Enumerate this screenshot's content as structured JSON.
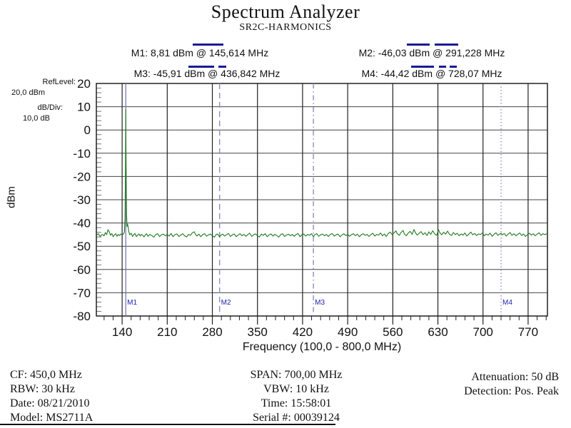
{
  "title": "Spectrum Analyzer",
  "subtitle": "SR2C-HARMONICS",
  "markers": [
    {
      "id": "M1",
      "label": "M1: 8,81 dBm @ 145,614 MHz",
      "freq_mhz": 145.614,
      "level_dbm": 8.81,
      "line_style": "solid"
    },
    {
      "id": "M2",
      "label": "M2: -46,03 dBm @ 291,228 MHz",
      "freq_mhz": 291.228,
      "level_dbm": -46.03,
      "line_style": "dashed"
    },
    {
      "id": "M3",
      "label": "M3: -45,91 dBm @ 436,842 MHz",
      "freq_mhz": 436.842,
      "level_dbm": -45.91,
      "line_style": "dashdot"
    },
    {
      "id": "M4",
      "label": "M4: -44,42 dBm @ 728,07 MHz",
      "freq_mhz": 728.07,
      "level_dbm": -44.42,
      "line_style": "dotted"
    }
  ],
  "left_panel": {
    "ref_level_label": "RefLevel:",
    "ref_level_value": "20,0  dBm",
    "db_div_label": "dB/Div:",
    "db_div_value": "10,0 dB"
  },
  "chart_data": {
    "type": "line",
    "title": "SR2C-HARMONICS",
    "xlabel": "Frequency (100,0 - 800,0 MHz)",
    "ylabel": "dBm",
    "xlim": [
      100,
      800
    ],
    "ylim": [
      -80,
      20
    ],
    "x_ticks": [
      140,
      210,
      280,
      350,
      420,
      490,
      560,
      630,
      700,
      770
    ],
    "y_ticks": [
      20,
      10,
      0,
      -10,
      -20,
      -30,
      -40,
      -50,
      -60,
      -70,
      -80
    ],
    "x_minor_step_mhz": 14,
    "y_minor_step_db": 2,
    "grid": true,
    "series": [
      {
        "name": "trace",
        "color": "#217a21",
        "points": [
          [
            100,
            -45.4
          ],
          [
            103,
            -44.6
          ],
          [
            106,
            -45.8
          ],
          [
            109,
            -44.9
          ],
          [
            112,
            -45.5
          ],
          [
            114,
            -44.1
          ],
          [
            116,
            -45.0
          ],
          [
            118,
            -42.9
          ],
          [
            120,
            -43.8
          ],
          [
            122,
            -45.3
          ],
          [
            124,
            -44.5
          ],
          [
            126,
            -45.9
          ],
          [
            128,
            -45.1
          ],
          [
            130,
            -44.6
          ],
          [
            132,
            -45.7
          ],
          [
            134,
            -44.9
          ],
          [
            136,
            -45.4
          ],
          [
            138,
            -44.7
          ],
          [
            140,
            -45.2
          ],
          [
            142,
            -44.8
          ],
          [
            143.5,
            -43.9
          ],
          [
            144.5,
            -38.0
          ],
          [
            145.2,
            -15.0
          ],
          [
            145.614,
            8.81
          ],
          [
            146.1,
            -12.0
          ],
          [
            146.8,
            -36.0
          ],
          [
            147.6,
            -41.5
          ],
          [
            148.5,
            -40.5
          ],
          [
            149.5,
            -42.0
          ],
          [
            150.5,
            -44.0
          ],
          [
            152,
            -45.1
          ],
          [
            154,
            -44.4
          ],
          [
            156,
            -45.8
          ],
          [
            158,
            -45.0
          ],
          [
            160,
            -44.5
          ],
          [
            162,
            -45.9
          ],
          [
            164,
            -45.2
          ],
          [
            166,
            -44.7
          ],
          [
            168,
            -45.6
          ],
          [
            170,
            -44.9
          ],
          [
            172,
            -45.3
          ],
          [
            174,
            -46.0
          ],
          [
            176,
            -45.1
          ],
          [
            178,
            -44.6
          ],
          [
            180,
            -45.7
          ],
          [
            183,
            -44.9
          ],
          [
            186,
            -45.4
          ],
          [
            189,
            -46.1
          ],
          [
            192,
            -45.0
          ],
          [
            195,
            -44.6
          ],
          [
            198,
            -45.8
          ],
          [
            201,
            -45.1
          ],
          [
            204,
            -44.8
          ],
          [
            207,
            -45.5
          ],
          [
            210,
            -44.9
          ],
          [
            213,
            -45.6
          ],
          [
            216,
            -44.5
          ],
          [
            219,
            -45.9
          ],
          [
            222,
            -45.0
          ],
          [
            225,
            -44.7
          ],
          [
            228,
            -45.8
          ],
          [
            231,
            -45.2
          ],
          [
            234,
            -44.6
          ],
          [
            237,
            -45.5
          ],
          [
            240,
            -46.0
          ],
          [
            243,
            -44.9
          ],
          [
            246,
            -45.3
          ],
          [
            249,
            -44.2
          ],
          [
            252,
            -43.8
          ],
          [
            254,
            -44.9
          ],
          [
            256,
            -45.6
          ],
          [
            259,
            -44.8
          ],
          [
            262,
            -45.9
          ],
          [
            265,
            -45.0
          ],
          [
            268,
            -44.6
          ],
          [
            271,
            -45.7
          ],
          [
            274,
            -45.1
          ],
          [
            277,
            -44.8
          ],
          [
            280,
            -45.5
          ],
          [
            283,
            -46.1
          ],
          [
            286,
            -45.0
          ],
          [
            288,
            -44.7
          ],
          [
            290,
            -45.4
          ],
          [
            291.228,
            -46.03
          ],
          [
            293,
            -45.2
          ],
          [
            296,
            -44.8
          ],
          [
            299,
            -45.6
          ],
          [
            302,
            -45.0
          ],
          [
            305,
            -44.5
          ],
          [
            308,
            -45.8
          ],
          [
            311,
            -45.1
          ],
          [
            314,
            -44.7
          ],
          [
            317,
            -45.9
          ],
          [
            320,
            -45.2
          ],
          [
            323,
            -44.6
          ],
          [
            326,
            -45.5
          ],
          [
            329,
            -44.9
          ],
          [
            332,
            -45.7
          ],
          [
            335,
            -45.0
          ],
          [
            338,
            -44.4
          ],
          [
            341,
            -45.8
          ],
          [
            344,
            -45.1
          ],
          [
            347,
            -44.7
          ],
          [
            350,
            -45.5
          ],
          [
            353,
            -46.0
          ],
          [
            356,
            -44.8
          ],
          [
            359,
            -45.3
          ],
          [
            362,
            -44.6
          ],
          [
            365,
            -45.9
          ],
          [
            368,
            -45.1
          ],
          [
            371,
            -44.7
          ],
          [
            374,
            -45.6
          ],
          [
            377,
            -44.9
          ],
          [
            380,
            -45.4
          ],
          [
            383,
            -46.1
          ],
          [
            386,
            -45.0
          ],
          [
            389,
            -44.6
          ],
          [
            392,
            -45.8
          ],
          [
            395,
            -45.2
          ],
          [
            398,
            -44.8
          ],
          [
            401,
            -45.5
          ],
          [
            404,
            -44.9
          ],
          [
            407,
            -45.7
          ],
          [
            410,
            -45.0
          ],
          [
            413,
            -44.5
          ],
          [
            416,
            -45.9
          ],
          [
            419,
            -45.1
          ],
          [
            422,
            -44.8
          ],
          [
            425,
            -45.6
          ],
          [
            428,
            -44.9
          ],
          [
            431,
            -45.3
          ],
          [
            434,
            -44.6
          ],
          [
            436.842,
            -45.91
          ],
          [
            439,
            -45.0
          ],
          [
            442,
            -44.6
          ],
          [
            445,
            -45.7
          ],
          [
            448,
            -45.1
          ],
          [
            451,
            -44.8
          ],
          [
            454,
            -45.5
          ],
          [
            457,
            -44.9
          ],
          [
            460,
            -45.8
          ],
          [
            463,
            -45.0
          ],
          [
            466,
            -44.5
          ],
          [
            469,
            -45.6
          ],
          [
            472,
            -45.1
          ],
          [
            475,
            -44.8
          ],
          [
            478,
            -45.9
          ],
          [
            481,
            -45.2
          ],
          [
            484,
            -44.6
          ],
          [
            487,
            -45.4
          ],
          [
            490,
            -44.9
          ],
          [
            493,
            -45.7
          ],
          [
            496,
            -45.0
          ],
          [
            499,
            -44.6
          ],
          [
            502,
            -45.5
          ],
          [
            505,
            -44.8
          ],
          [
            508,
            -45.9
          ],
          [
            511,
            -45.1
          ],
          [
            514,
            -44.6
          ],
          [
            517,
            -45.3
          ],
          [
            520,
            -44.9
          ],
          [
            523,
            -45.8
          ],
          [
            526,
            -45.0
          ],
          [
            529,
            -44.4
          ],
          [
            532,
            -45.6
          ],
          [
            535,
            -44.9
          ],
          [
            538,
            -45.2
          ],
          [
            541,
            -44.3
          ],
          [
            544,
            -45.5
          ],
          [
            547,
            -44.7
          ],
          [
            550,
            -45.8
          ],
          [
            553,
            -44.5
          ],
          [
            556,
            -43.9
          ],
          [
            559,
            -45.0
          ],
          [
            562,
            -44.2
          ],
          [
            565,
            -43.4
          ],
          [
            567,
            -44.6
          ],
          [
            570,
            -45.3
          ],
          [
            573,
            -44.0
          ],
          [
            576,
            -43.2
          ],
          [
            578,
            -44.8
          ],
          [
            581,
            -45.5
          ],
          [
            584,
            -44.3
          ],
          [
            587,
            -43.6
          ],
          [
            590,
            -44.9
          ],
          [
            593,
            -42.8
          ],
          [
            595,
            -44.1
          ],
          [
            598,
            -45.2
          ],
          [
            601,
            -44.4
          ],
          [
            604,
            -43.7
          ],
          [
            607,
            -45.0
          ],
          [
            610,
            -44.2
          ],
          [
            613,
            -45.4
          ],
          [
            616,
            -43.8
          ],
          [
            619,
            -44.9
          ],
          [
            622,
            -43.3
          ],
          [
            625,
            -44.7
          ],
          [
            628,
            -45.3
          ],
          [
            631,
            -42.9
          ],
          [
            633,
            -44.2
          ],
          [
            636,
            -45.1
          ],
          [
            639,
            -44.0
          ],
          [
            642,
            -44.8
          ],
          [
            645,
            -43.5
          ],
          [
            648,
            -44.9
          ],
          [
            651,
            -45.4
          ],
          [
            654,
            -44.1
          ],
          [
            657,
            -45.0
          ],
          [
            660,
            -44.4
          ],
          [
            663,
            -45.5
          ],
          [
            666,
            -44.7
          ],
          [
            669,
            -45.2
          ],
          [
            672,
            -44.3
          ],
          [
            675,
            -45.6
          ],
          [
            678,
            -44.8
          ],
          [
            681,
            -43.9
          ],
          [
            684,
            -45.1
          ],
          [
            687,
            -44.5
          ],
          [
            690,
            -45.4
          ],
          [
            693,
            -44.7
          ],
          [
            696,
            -45.0
          ],
          [
            699,
            -44.3
          ],
          [
            702,
            -45.5
          ],
          [
            705,
            -44.8
          ],
          [
            708,
            -45.2
          ],
          [
            711,
            -44.4
          ],
          [
            714,
            -45.7
          ],
          [
            717,
            -44.9
          ],
          [
            720,
            -44.2
          ],
          [
            723,
            -45.3
          ],
          [
            726,
            -44.7
          ],
          [
            728.07,
            -44.42
          ],
          [
            730,
            -45.1
          ],
          [
            733,
            -44.5
          ],
          [
            736,
            -45.6
          ],
          [
            739,
            -44.8
          ],
          [
            742,
            -44.1
          ],
          [
            745,
            -45.3
          ],
          [
            748,
            -44.6
          ],
          [
            751,
            -45.5
          ],
          [
            754,
            -44.9
          ],
          [
            757,
            -44.3
          ],
          [
            760,
            -45.4
          ],
          [
            763,
            -44.7
          ],
          [
            766,
            -45.8
          ],
          [
            769,
            -45.0
          ],
          [
            772,
            -44.4
          ],
          [
            775,
            -45.2
          ],
          [
            778,
            -44.6
          ],
          [
            781,
            -45.5
          ],
          [
            784,
            -44.8
          ],
          [
            787,
            -44.2
          ],
          [
            790,
            -45.3
          ],
          [
            793,
            -44.6
          ],
          [
            796,
            -45.0
          ],
          [
            800,
            -44.5
          ]
        ]
      }
    ]
  },
  "footer": {
    "left": [
      "CF: 450,0 MHz",
      "RBW: 30 kHz",
      "Date: 08/21/2010",
      "Model: MS2711A"
    ],
    "center": [
      "SPAN: 700,00 MHz",
      "VBW: 10 kHz",
      "Time: 15:58:01",
      "Serial #: 00039124"
    ],
    "right": [
      "Attenuation: 50 dB",
      "Detection: Pos. Peak"
    ]
  },
  "colors": {
    "trace": "#217a21",
    "highlight_bar": "#1a1a96",
    "marker_line": "#8c8cc4",
    "marker_flag_text": "#2222aa",
    "grid_major": "#444444",
    "axis": "#111111"
  }
}
